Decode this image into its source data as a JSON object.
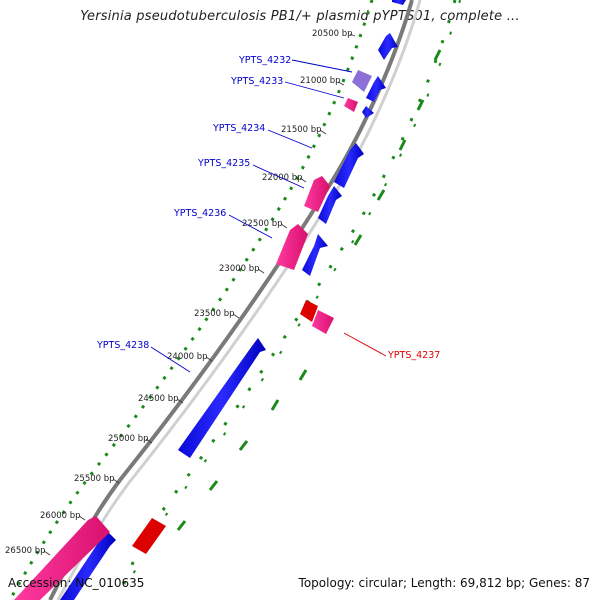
{
  "title": "Yersinia pseudotuberculosis PB1/+ plasmid pYPTS01, complete ...",
  "footer": {
    "accession": "Accession: NC_010635",
    "summary": "Topology: circular; Length: 69,812 bp; Genes: 87"
  },
  "colors": {
    "forward_gene": "#1010e8",
    "reverse_gene": "#e8157f",
    "pseudo_or_rna": "#e00000",
    "backbone": "#888888",
    "tick_green": "#1a8a1a",
    "label_blue": "#0000cc",
    "label_red": "#dd0000"
  },
  "map": {
    "ticks": [
      "20500 bp",
      "21000 bp",
      "21500 bp",
      "22000 bp",
      "22500 bp",
      "23000 bp",
      "23500 bp",
      "24000 bp",
      "24500 bp",
      "25000 bp",
      "25500 bp",
      "26000 bp",
      "26500 bp"
    ],
    "tick_positions_bp": [
      20500,
      21000,
      21500,
      22000,
      22500,
      23000,
      23500,
      24000,
      24500,
      25000,
      25500,
      26000,
      26500
    ],
    "gene_labels": [
      {
        "name": "YPTS_4232",
        "color": "blue"
      },
      {
        "name": "YPTS_4233",
        "color": "blue"
      },
      {
        "name": "YPTS_4234",
        "color": "blue"
      },
      {
        "name": "YPTS_4235",
        "color": "blue"
      },
      {
        "name": "YPTS_4236",
        "color": "blue"
      },
      {
        "name": "YPTS_4238",
        "color": "blue"
      },
      {
        "name": "YPTS_4237",
        "color": "red"
      }
    ]
  }
}
